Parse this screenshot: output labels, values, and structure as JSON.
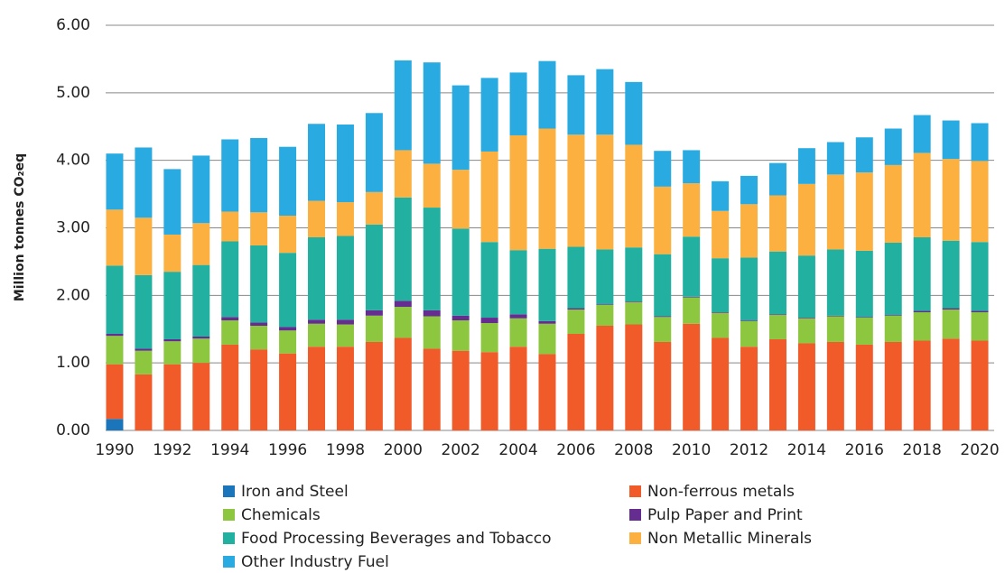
{
  "chart_data": {
    "type": "stacked-bar",
    "y_label": "Million tonnes CO₂eq",
    "categories": [
      "1990",
      null,
      "1992",
      null,
      "1994",
      null,
      "1996",
      null,
      "1998",
      null,
      "2000",
      null,
      "2002",
      null,
      "2004",
      null,
      "2006",
      null,
      "2008",
      null,
      "2010",
      null,
      "2012",
      null,
      "2014",
      null,
      "2016",
      null,
      "2018",
      null,
      "2020"
    ],
    "ylim": [
      0,
      6
    ],
    "yticks": [
      {
        "value": 0,
        "label": "0.00"
      },
      {
        "value": 1,
        "label": "1.00"
      },
      {
        "value": 2,
        "label": "2.00"
      },
      {
        "value": 3,
        "label": "3.00"
      },
      {
        "value": 4,
        "label": "4.00"
      },
      {
        "value": 5,
        "label": "5.00"
      },
      {
        "value": 6,
        "label": "6.00"
      }
    ],
    "grid": true,
    "series": [
      {
        "name": "Iron and Steel",
        "color": "#1b75bb",
        "values": [
          0.17,
          0,
          0,
          0,
          0,
          0,
          0,
          0,
          0,
          0,
          0,
          0,
          0,
          0,
          0,
          0,
          0,
          0,
          0,
          0,
          0,
          0,
          0,
          0,
          0,
          0,
          0,
          0,
          0,
          0,
          0
        ]
      },
      {
        "name": "Non-ferrous metals",
        "color": "#f15a29",
        "values": [
          0.81,
          0.83,
          0.98,
          1.0,
          1.27,
          1.2,
          1.14,
          1.24,
          1.24,
          1.31,
          1.37,
          1.21,
          1.18,
          1.16,
          1.24,
          1.13,
          1.43,
          1.55,
          1.57,
          1.31,
          1.58,
          1.37,
          1.24,
          1.35,
          1.29,
          1.31,
          1.27,
          1.31,
          1.33,
          1.36,
          1.33
        ]
      },
      {
        "name": "Chemicals",
        "color": "#8dc63f",
        "values": [
          0.42,
          0.35,
          0.34,
          0.36,
          0.36,
          0.35,
          0.34,
          0.34,
          0.33,
          0.39,
          0.46,
          0.48,
          0.45,
          0.43,
          0.42,
          0.45,
          0.36,
          0.31,
          0.33,
          0.37,
          0.39,
          0.37,
          0.38,
          0.36,
          0.37,
          0.38,
          0.4,
          0.39,
          0.42,
          0.43,
          0.42
        ]
      },
      {
        "name": "Pulp Paper and Print",
        "color": "#662d91",
        "values": [
          0.03,
          0.03,
          0.03,
          0.03,
          0.05,
          0.05,
          0.05,
          0.06,
          0.07,
          0.08,
          0.09,
          0.09,
          0.07,
          0.08,
          0.06,
          0.04,
          0.02,
          0.01,
          0.01,
          0.01,
          0.01,
          0.01,
          0.01,
          0.01,
          0.01,
          0.01,
          0.01,
          0.01,
          0.02,
          0.02,
          0.02
        ]
      },
      {
        "name": "Food Processing Beverages and Tobacco",
        "color": "#22b0a1",
        "values": [
          1.01,
          1.09,
          1.0,
          1.06,
          1.12,
          1.14,
          1.1,
          1.22,
          1.24,
          1.27,
          1.53,
          1.52,
          1.29,
          1.12,
          0.95,
          1.07,
          0.91,
          0.81,
          0.8,
          0.92,
          0.89,
          0.8,
          0.93,
          0.93,
          0.92,
          0.98,
          0.98,
          1.07,
          1.09,
          1.0,
          1.02
        ]
      },
      {
        "name": "Non Metallic Minerals",
        "color": "#fbb040",
        "values": [
          0.83,
          0.85,
          0.55,
          0.62,
          0.44,
          0.49,
          0.55,
          0.54,
          0.5,
          0.48,
          0.7,
          0.65,
          0.87,
          1.34,
          1.7,
          1.78,
          1.66,
          1.7,
          1.52,
          1.0,
          0.79,
          0.7,
          0.79,
          0.83,
          1.06,
          1.11,
          1.16,
          1.15,
          1.25,
          1.21,
          1.2
        ]
      },
      {
        "name": "Other  Industry Fuel",
        "color": "#29abe2",
        "values": [
          0.83,
          1.04,
          0.97,
          1.0,
          1.07,
          1.1,
          1.02,
          1.14,
          1.15,
          1.17,
          1.33,
          1.5,
          1.25,
          1.09,
          0.93,
          1.0,
          0.88,
          0.97,
          0.93,
          0.53,
          0.49,
          0.44,
          0.42,
          0.48,
          0.53,
          0.48,
          0.52,
          0.54,
          0.56,
          0.57,
          0.56
        ]
      }
    ]
  }
}
